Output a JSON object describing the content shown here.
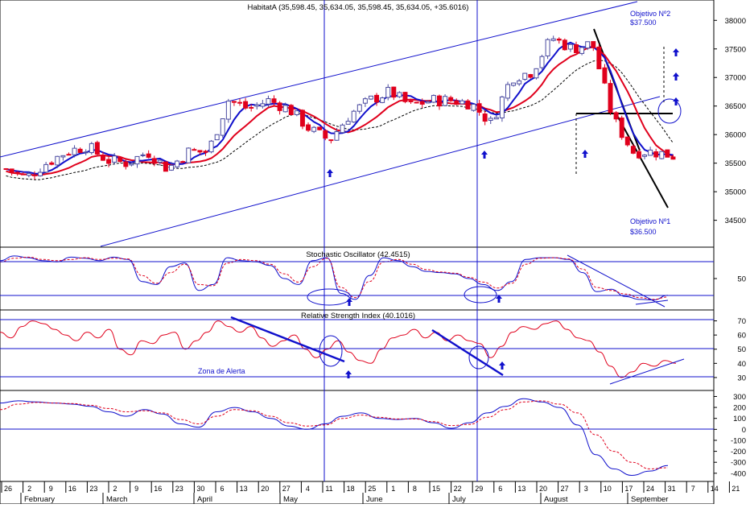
{
  "chart_data": [
    {
      "type": "candlestick",
      "title": "HabitatA (35,598.45, 35,634.05, 35,598.45, 35,634.05, +35.6016)",
      "ylim": [
        34100,
        38300
      ],
      "yticks": [
        34500,
        35000,
        35500,
        36000,
        36500,
        37000,
        37500,
        38000
      ],
      "legend": "none",
      "grid": false,
      "annotations": [
        "Objetivo Nº2",
        "$37.500",
        "Objetivo Nº1",
        "$36.500"
      ],
      "series": [
        {
          "name": "",
          "kind": "candles",
          "color_up": "#4a4aa0",
          "color_down": "#e0001c",
          "note": "daily candles, February–September, close path below",
          "x": [
            "Jan 26",
            "Feb 2",
            "Feb 9",
            "Feb 16",
            "Feb 23",
            "Mar 2",
            "Mar 9",
            "Mar 16",
            "Mar 23",
            "Mar 30",
            "Apr 6",
            "Apr 13",
            "Apr 20",
            "Apr 27",
            "May 4",
            "May 11",
            "May 18",
            "May 25",
            "Jun 1",
            "Jun 8",
            "Jun 15",
            "Jun 22",
            "Jun 29",
            "Jul 6",
            "Jul 13",
            "Jul 20",
            "Jul 27",
            "Aug 3",
            "Aug 10",
            "Aug 17",
            "Aug 24",
            "Aug 31",
            "Sep 7",
            "Sep 14"
          ],
          "close": [
            35400,
            35250,
            35500,
            35700,
            35800,
            35550,
            35500,
            35700,
            35400,
            35700,
            35700,
            36600,
            36450,
            36600,
            36450,
            36100,
            35900,
            36350,
            36600,
            36750,
            36500,
            36600,
            36600,
            36550,
            36200,
            37000,
            37100,
            37700,
            37500,
            37600,
            36300,
            35700,
            35700,
            35630
          ]
        },
        {
          "name": "",
          "kind": "line",
          "color": "#1010cc",
          "style": "solid"
        },
        {
          "name": "",
          "kind": "line",
          "color": "#e0001c",
          "style": "solid"
        },
        {
          "name": "",
          "kind": "line",
          "color": "#000000",
          "style": "dashed"
        }
      ]
    },
    {
      "type": "line",
      "title": "Stochastic Oscillator (42.4515)",
      "ylim": [
        0,
        100
      ],
      "yticks": [
        50
      ],
      "reference_lines": [
        20,
        80
      ],
      "series": [
        {
          "name": "",
          "color": "#1010cc",
          "style": "solid",
          "values": [
            80,
            88,
            85,
            80,
            78,
            86,
            84,
            80,
            86,
            82,
            45,
            40,
            70,
            76,
            30,
            40,
            85,
            80,
            78,
            72,
            50,
            40,
            80,
            85,
            25,
            15,
            55,
            85,
            80,
            70,
            62,
            60,
            58,
            50,
            40,
            30,
            45,
            82,
            85,
            85,
            82,
            60,
            28,
            32,
            20,
            15,
            14,
            22
          ]
        },
        {
          "name": "",
          "color": "#e0001c",
          "style": "dashed",
          "values": [
            78,
            84,
            86,
            82,
            80,
            82,
            85,
            82,
            84,
            83,
            55,
            42,
            60,
            74,
            40,
            38,
            76,
            82,
            80,
            74,
            58,
            44,
            70,
            84,
            35,
            18,
            45,
            78,
            82,
            74,
            65,
            61,
            59,
            52,
            44,
            34,
            42,
            74,
            84,
            85,
            83,
            66,
            35,
            30,
            24,
            18,
            15,
            19
          ]
        }
      ]
    },
    {
      "type": "line",
      "title": "Relative Strength Index (40.1016)",
      "ylim": [
        22,
        76
      ],
      "yticks": [
        30,
        40,
        50,
        60,
        70
      ],
      "reference_lines": [
        30,
        50,
        70
      ],
      "annotations": [
        "Zona de Alerta"
      ],
      "series": [
        {
          "name": "",
          "color": "#e0001c",
          "style": "solid",
          "values": [
            62,
            58,
            66,
            70,
            68,
            64,
            60,
            56,
            62,
            58,
            64,
            50,
            46,
            56,
            54,
            60,
            62,
            50,
            56,
            62,
            70,
            66,
            62,
            66,
            58,
            52,
            56,
            60,
            50,
            44,
            50,
            56,
            48,
            42,
            40,
            50,
            58,
            60,
            64,
            58,
            62,
            56,
            60,
            56,
            54,
            44,
            52,
            62,
            66,
            64,
            68,
            70,
            64,
            58,
            56,
            48,
            38,
            30,
            34,
            40,
            38,
            42,
            40
          ]
        }
      ]
    },
    {
      "type": "line",
      "title": "",
      "ylim": [
        -460,
        340
      ],
      "yticks": [
        -400,
        -300,
        -200,
        -100,
        0,
        100,
        200,
        300
      ],
      "reference_lines": [
        0
      ],
      "series": [
        {
          "name": "",
          "color": "#1010cc",
          "style": "solid",
          "values": [
            240,
            260,
            250,
            240,
            230,
            210,
            160,
            120,
            180,
            140,
            50,
            20,
            160,
            200,
            160,
            100,
            30,
            0,
            50,
            120,
            150,
            100,
            90,
            100,
            60,
            10,
            60,
            150,
            210,
            280,
            250,
            200,
            40,
            -230,
            -360,
            -420,
            -380,
            -330
          ]
        },
        {
          "name": "",
          "color": "#e0001c",
          "style": "dashed",
          "values": [
            180,
            230,
            245,
            240,
            235,
            220,
            190,
            160,
            170,
            150,
            90,
            50,
            120,
            180,
            170,
            120,
            60,
            30,
            40,
            100,
            130,
            110,
            95,
            95,
            70,
            35,
            45,
            110,
            180,
            250,
            260,
            230,
            150,
            -50,
            -200,
            -300,
            -360,
            -350
          ]
        }
      ]
    }
  ],
  "xaxis": {
    "ticks": [
      "26",
      "2",
      "9",
      "16",
      "23",
      "2",
      "9",
      "16",
      "23",
      "30",
      "6",
      "13",
      "20",
      "27",
      "4",
      "11",
      "18",
      "25",
      "1",
      "8",
      "15",
      "22",
      "29",
      "6",
      "13",
      "20",
      "27",
      "3",
      "10",
      "17",
      "24",
      "31",
      "7",
      "14",
      "21",
      "28"
    ],
    "months": [
      "February",
      "March",
      "April",
      "May",
      "June",
      "July",
      "August",
      "September"
    ]
  }
}
